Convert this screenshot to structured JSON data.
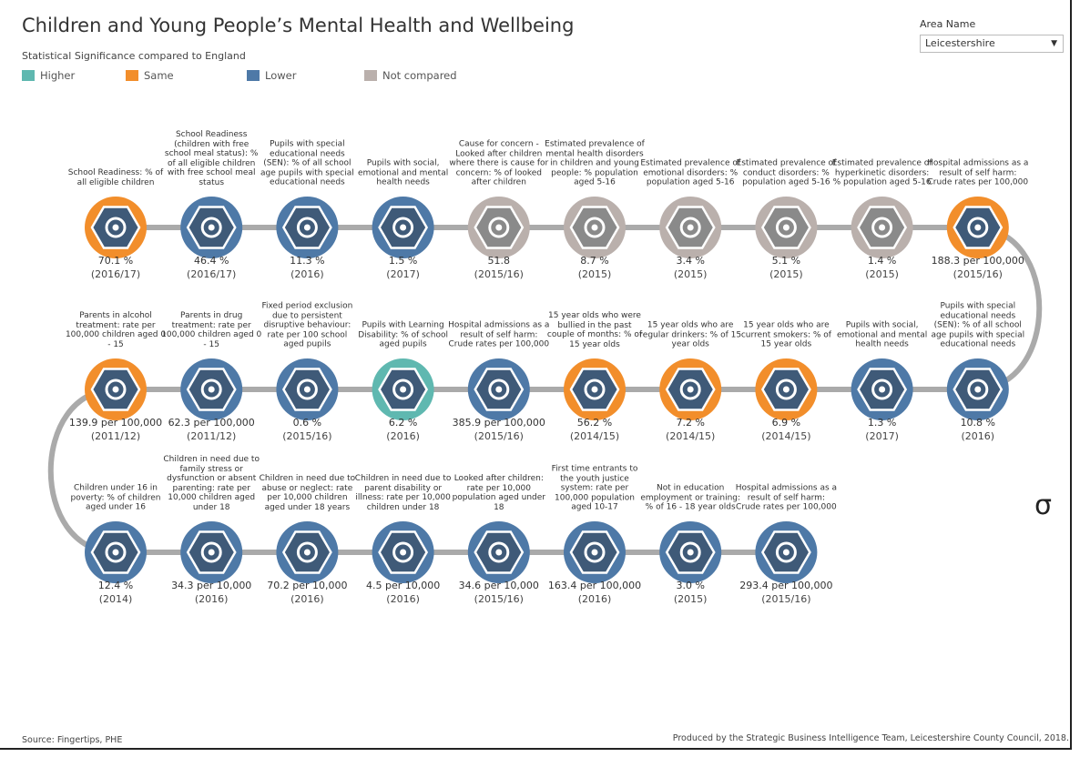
{
  "header": {
    "title": "Children and Young People’s Mental Health and Wellbeing",
    "legend_title": "Statistical Significance compared to England",
    "area_label": "Area Name",
    "area_value": "Leicestershire"
  },
  "legend": [
    {
      "name": "Higher",
      "color": "#5fb8b0"
    },
    {
      "name": "Same",
      "color": "#f28e2b"
    },
    {
      "name": "Lower",
      "color": "#4e79a7"
    },
    {
      "name": "Not compared",
      "color": "#bab0ac"
    }
  ],
  "rows": [
    [
      {
        "label": "School Readiness: % of all eligible children",
        "value": "70.1 %",
        "period": "(2016/17)",
        "status": "Same"
      },
      {
        "label": "School Readiness (children with free school meal status): % of all eligible children with free school meal status",
        "value": "46.4 %",
        "period": "(2016/17)",
        "status": "Lower"
      },
      {
        "label": "Pupils with special educational needs (SEN): % of all school age pupils with special educational needs",
        "value": "11.3 %",
        "period": "(2016)",
        "status": "Lower"
      },
      {
        "label": "Pupils with social, emotional and mental health needs",
        "value": "1.5 %",
        "period": "(2017)",
        "status": "Lower"
      },
      {
        "label": "Cause for concern - Looked after children where there is cause for concern: % of looked after children",
        "value": "51.8",
        "period": "(2015/16)",
        "status": "Not compared"
      },
      {
        "label": "Estimated prevalence of mental health disorders in children and young people: % population aged 5-16",
        "value": "8.7 %",
        "period": "(2015)",
        "status": "Not compared"
      },
      {
        "label": "Estimated prevalence of emotional disorders: % population aged 5-16",
        "value": "3.4 %",
        "period": "(2015)",
        "status": "Not compared"
      },
      {
        "label": "Estimated prevalence of conduct disorders: % population aged 5-16",
        "value": "5.1 %",
        "period": "(2015)",
        "status": "Not compared"
      },
      {
        "label": "Estimated prevalence of hyperkinetic disorders: % population aged 5-16",
        "value": "1.4 %",
        "period": "(2015)",
        "status": "Not compared"
      },
      {
        "label": "Hospital admissions as a result of self harm: Crude rates per 100,000",
        "value": "188.3 per 100,000",
        "period": "(2015/16)",
        "status": "Same"
      }
    ],
    [
      {
        "label": "Parents in alcohol treatment: rate per 100,000 children aged 0 - 15",
        "value": "139.9 per 100,000",
        "period": "(2011/12)",
        "status": "Same"
      },
      {
        "label": "Parents in drug treatment: rate per 100,000 children aged 0 - 15",
        "value": "62.3 per 100,000",
        "period": "(2011/12)",
        "status": "Lower"
      },
      {
        "label": "Fixed period exclusion due to persistent disruptive behaviour: rate per 100 school aged pupils",
        "value": "0.6 %",
        "period": "(2015/16)",
        "status": "Lower"
      },
      {
        "label": "Pupils with Learning Disability: % of school aged pupils",
        "value": "6.2 %",
        "period": "(2016)",
        "status": "Higher"
      },
      {
        "label": "Hospital admissions as a result of self harm: Crude rates per 100,000",
        "value": "385.9 per 100,000",
        "period": "(2015/16)",
        "status": "Lower"
      },
      {
        "label": "15 year olds who were bullied in the past couple of months: % of 15 year olds",
        "value": "56.2 %",
        "period": "(2014/15)",
        "status": "Same"
      },
      {
        "label": "15 year olds who are regular drinkers: % of 15 year olds",
        "value": "7.2 %",
        "period": "(2014/15)",
        "status": "Same"
      },
      {
        "label": "15 year olds who are current smokers: % of 15 year olds",
        "value": "6.9 %",
        "period": "(2014/15)",
        "status": "Same"
      },
      {
        "label": "Pupils with social, emotional and mental health needs",
        "value": "1.3 %",
        "period": "(2017)",
        "status": "Lower"
      },
      {
        "label": "Pupils with special educational needs (SEN): % of all school age pupils with special educational needs",
        "value": "10.8 %",
        "period": "(2016)",
        "status": "Lower"
      }
    ],
    [
      {
        "label": "Children under 16 in poverty: % of children aged under 16",
        "value": "12.4 %",
        "period": "(2014)",
        "status": "Lower"
      },
      {
        "label": "Children in need due to family stress or dysfunction or absent parenting: rate per 10,000 children aged under 18",
        "value": "34.3 per 10,000",
        "period": "(2016)",
        "status": "Lower"
      },
      {
        "label": "Children in need due to abuse or neglect: rate per 10,000 children aged under 18 years",
        "value": "70.2 per 10,000",
        "period": "(2016)",
        "status": "Lower"
      },
      {
        "label": "Children in need due to parent disability or illness: rate per 10,000 children under 18",
        "value": "4.5 per 10,000",
        "period": "(2016)",
        "status": "Lower"
      },
      {
        "label": "Looked after children: rate per 10,000 population aged under 18",
        "value": "34.6 per 10,000",
        "period": "(2015/16)",
        "status": "Lower"
      },
      {
        "label": "First time entrants to the youth justice system: rate per 100,000 population aged 10-17",
        "value": "163.4 per 100,000",
        "period": "(2016)",
        "status": "Lower"
      },
      {
        "label": "Not in education employment or training: % of 16 - 18 year olds",
        "value": "3.0 %",
        "period": "(2015)",
        "status": "Lower"
      },
      {
        "label": "Hospital admissions as a result of self harm: Crude rates per 100,000",
        "value": "293.4 per 100,000",
        "period": "(2015/16)",
        "status": "Lower"
      }
    ]
  ],
  "stray_glyph": "σ",
  "footer": {
    "source": "Source: Fingertips, PHE",
    "credit": "Produced by the Strategic Business Intelligence Team, Leicestershire County Council, 2018."
  }
}
